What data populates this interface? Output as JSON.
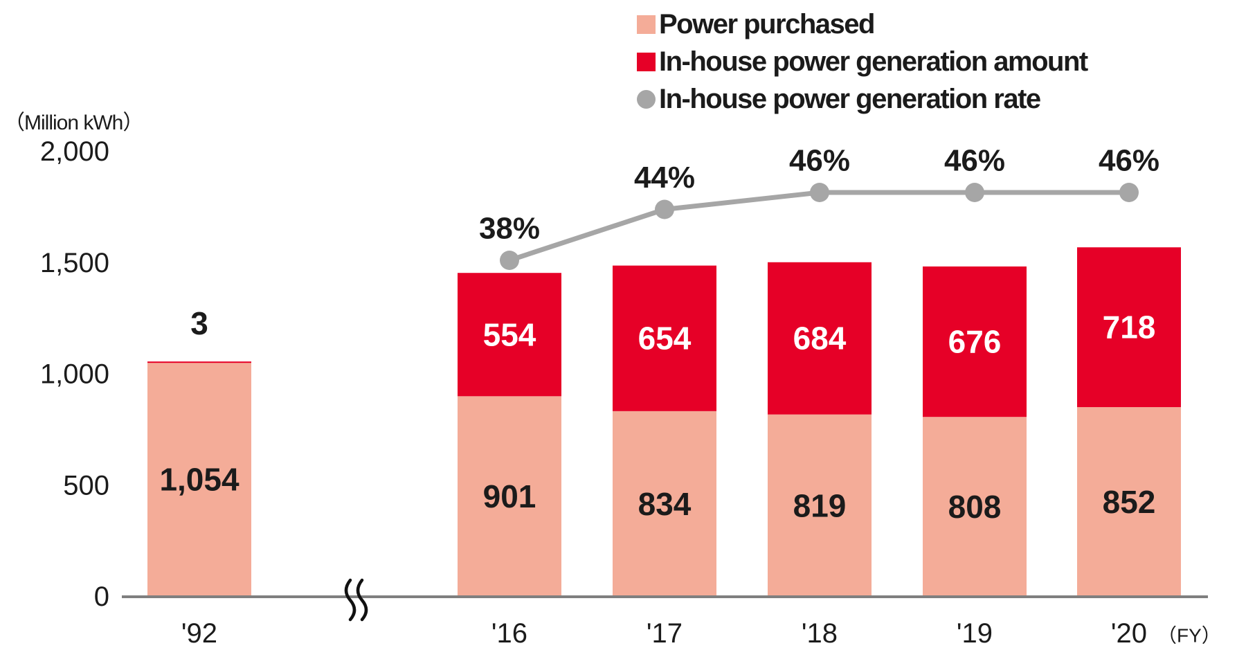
{
  "unit_label": "（Million kWh）",
  "legend": {
    "items": [
      {
        "label": "Power purchased",
        "shape": "square",
        "color": "#F4AC98"
      },
      {
        "label": "In-house power generation amount",
        "shape": "square",
        "color": "#E60027"
      },
      {
        "label": "In-house power generation rate",
        "shape": "circle",
        "color": "#A6A6A6"
      }
    ]
  },
  "chart_data": {
    "type": "bar",
    "subtype": "stacked-bar-with-line",
    "title": "",
    "ylabel": "（Million kWh）",
    "xlabel_suffix": "（FY）",
    "categories": [
      "'92",
      "'16",
      "'17",
      "'18",
      "'19",
      "'20"
    ],
    "series": [
      {
        "name": "Power purchased",
        "color": "#F4AC98",
        "values": [
          1054,
          901,
          834,
          819,
          808,
          852
        ],
        "labels": [
          "1,054",
          "901",
          "834",
          "819",
          "808",
          "852"
        ],
        "label_color": "#1b1b1b"
      },
      {
        "name": "In-house power generation amount",
        "color": "#E60027",
        "values": [
          3,
          554,
          654,
          684,
          676,
          718
        ],
        "labels": [
          "3",
          "554",
          "654",
          "684",
          "676",
          "718"
        ],
        "label_color": "#ffffff"
      }
    ],
    "line": {
      "name": "In-house power generation rate",
      "color": "#A6A6A6",
      "values": [
        null,
        38,
        44,
        46,
        46,
        46
      ],
      "labels": [
        "",
        "38%",
        "44%",
        "46%",
        "46%",
        "46%"
      ]
    },
    "ylim": [
      0,
      2000
    ],
    "yticks": {
      "values": [
        0,
        500,
        1000,
        1500,
        2000
      ],
      "labels": [
        "0",
        "500",
        "1,000",
        "1,500",
        "2,000"
      ]
    },
    "axis_break_between": [
      "'92",
      "'16"
    ],
    "grid": false,
    "legend_position": "top-right"
  }
}
